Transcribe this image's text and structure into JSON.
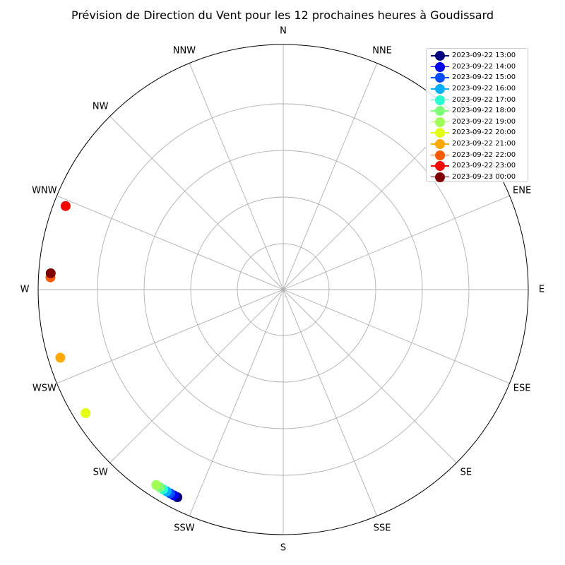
{
  "chart_data": {
    "type": "scatter",
    "subtype": "polar",
    "title": "Prévision de Direction du Vent pour les 12 prochaines heures à Goudissard",
    "direction_labels": [
      "N",
      "NNE",
      "NE",
      "ENE",
      "E",
      "ESE",
      "SE",
      "SSE",
      "S",
      "SSW",
      "SW",
      "WSW",
      "W",
      "WNW",
      "NW",
      "NNW"
    ],
    "radial_tick_labels": [],
    "grid": true,
    "legend_position": "top-right",
    "series": [
      {
        "name": "2023-09-22 13:00",
        "direction_deg": 207,
        "color": "#00007f"
      },
      {
        "name": "2023-09-22 14:00",
        "direction_deg": 208,
        "color": "#0000f1"
      },
      {
        "name": "2023-09-22 15:00",
        "direction_deg": 209,
        "color": "#004cff"
      },
      {
        "name": "2023-09-22 16:00",
        "direction_deg": 210,
        "color": "#00b0ff"
      },
      {
        "name": "2023-09-22 17:00",
        "direction_deg": 211,
        "color": "#29ffce"
      },
      {
        "name": "2023-09-22 18:00",
        "direction_deg": 212,
        "color": "#7dff7a"
      },
      {
        "name": "2023-09-22 19:00",
        "direction_deg": 213,
        "color": "#a0ff56"
      },
      {
        "name": "2023-09-22 20:00",
        "direction_deg": 238,
        "color": "#e2ff15"
      },
      {
        "name": "2023-09-22 21:00",
        "direction_deg": 253,
        "color": "#ffa800"
      },
      {
        "name": "2023-09-22 22:00",
        "direction_deg": 273,
        "color": "#ff5a00"
      },
      {
        "name": "2023-09-22 23:00",
        "direction_deg": 291,
        "color": "#f10800"
      },
      {
        "name": "2023-09-23 00:00",
        "direction_deg": 274,
        "color": "#7f0000"
      }
    ]
  }
}
